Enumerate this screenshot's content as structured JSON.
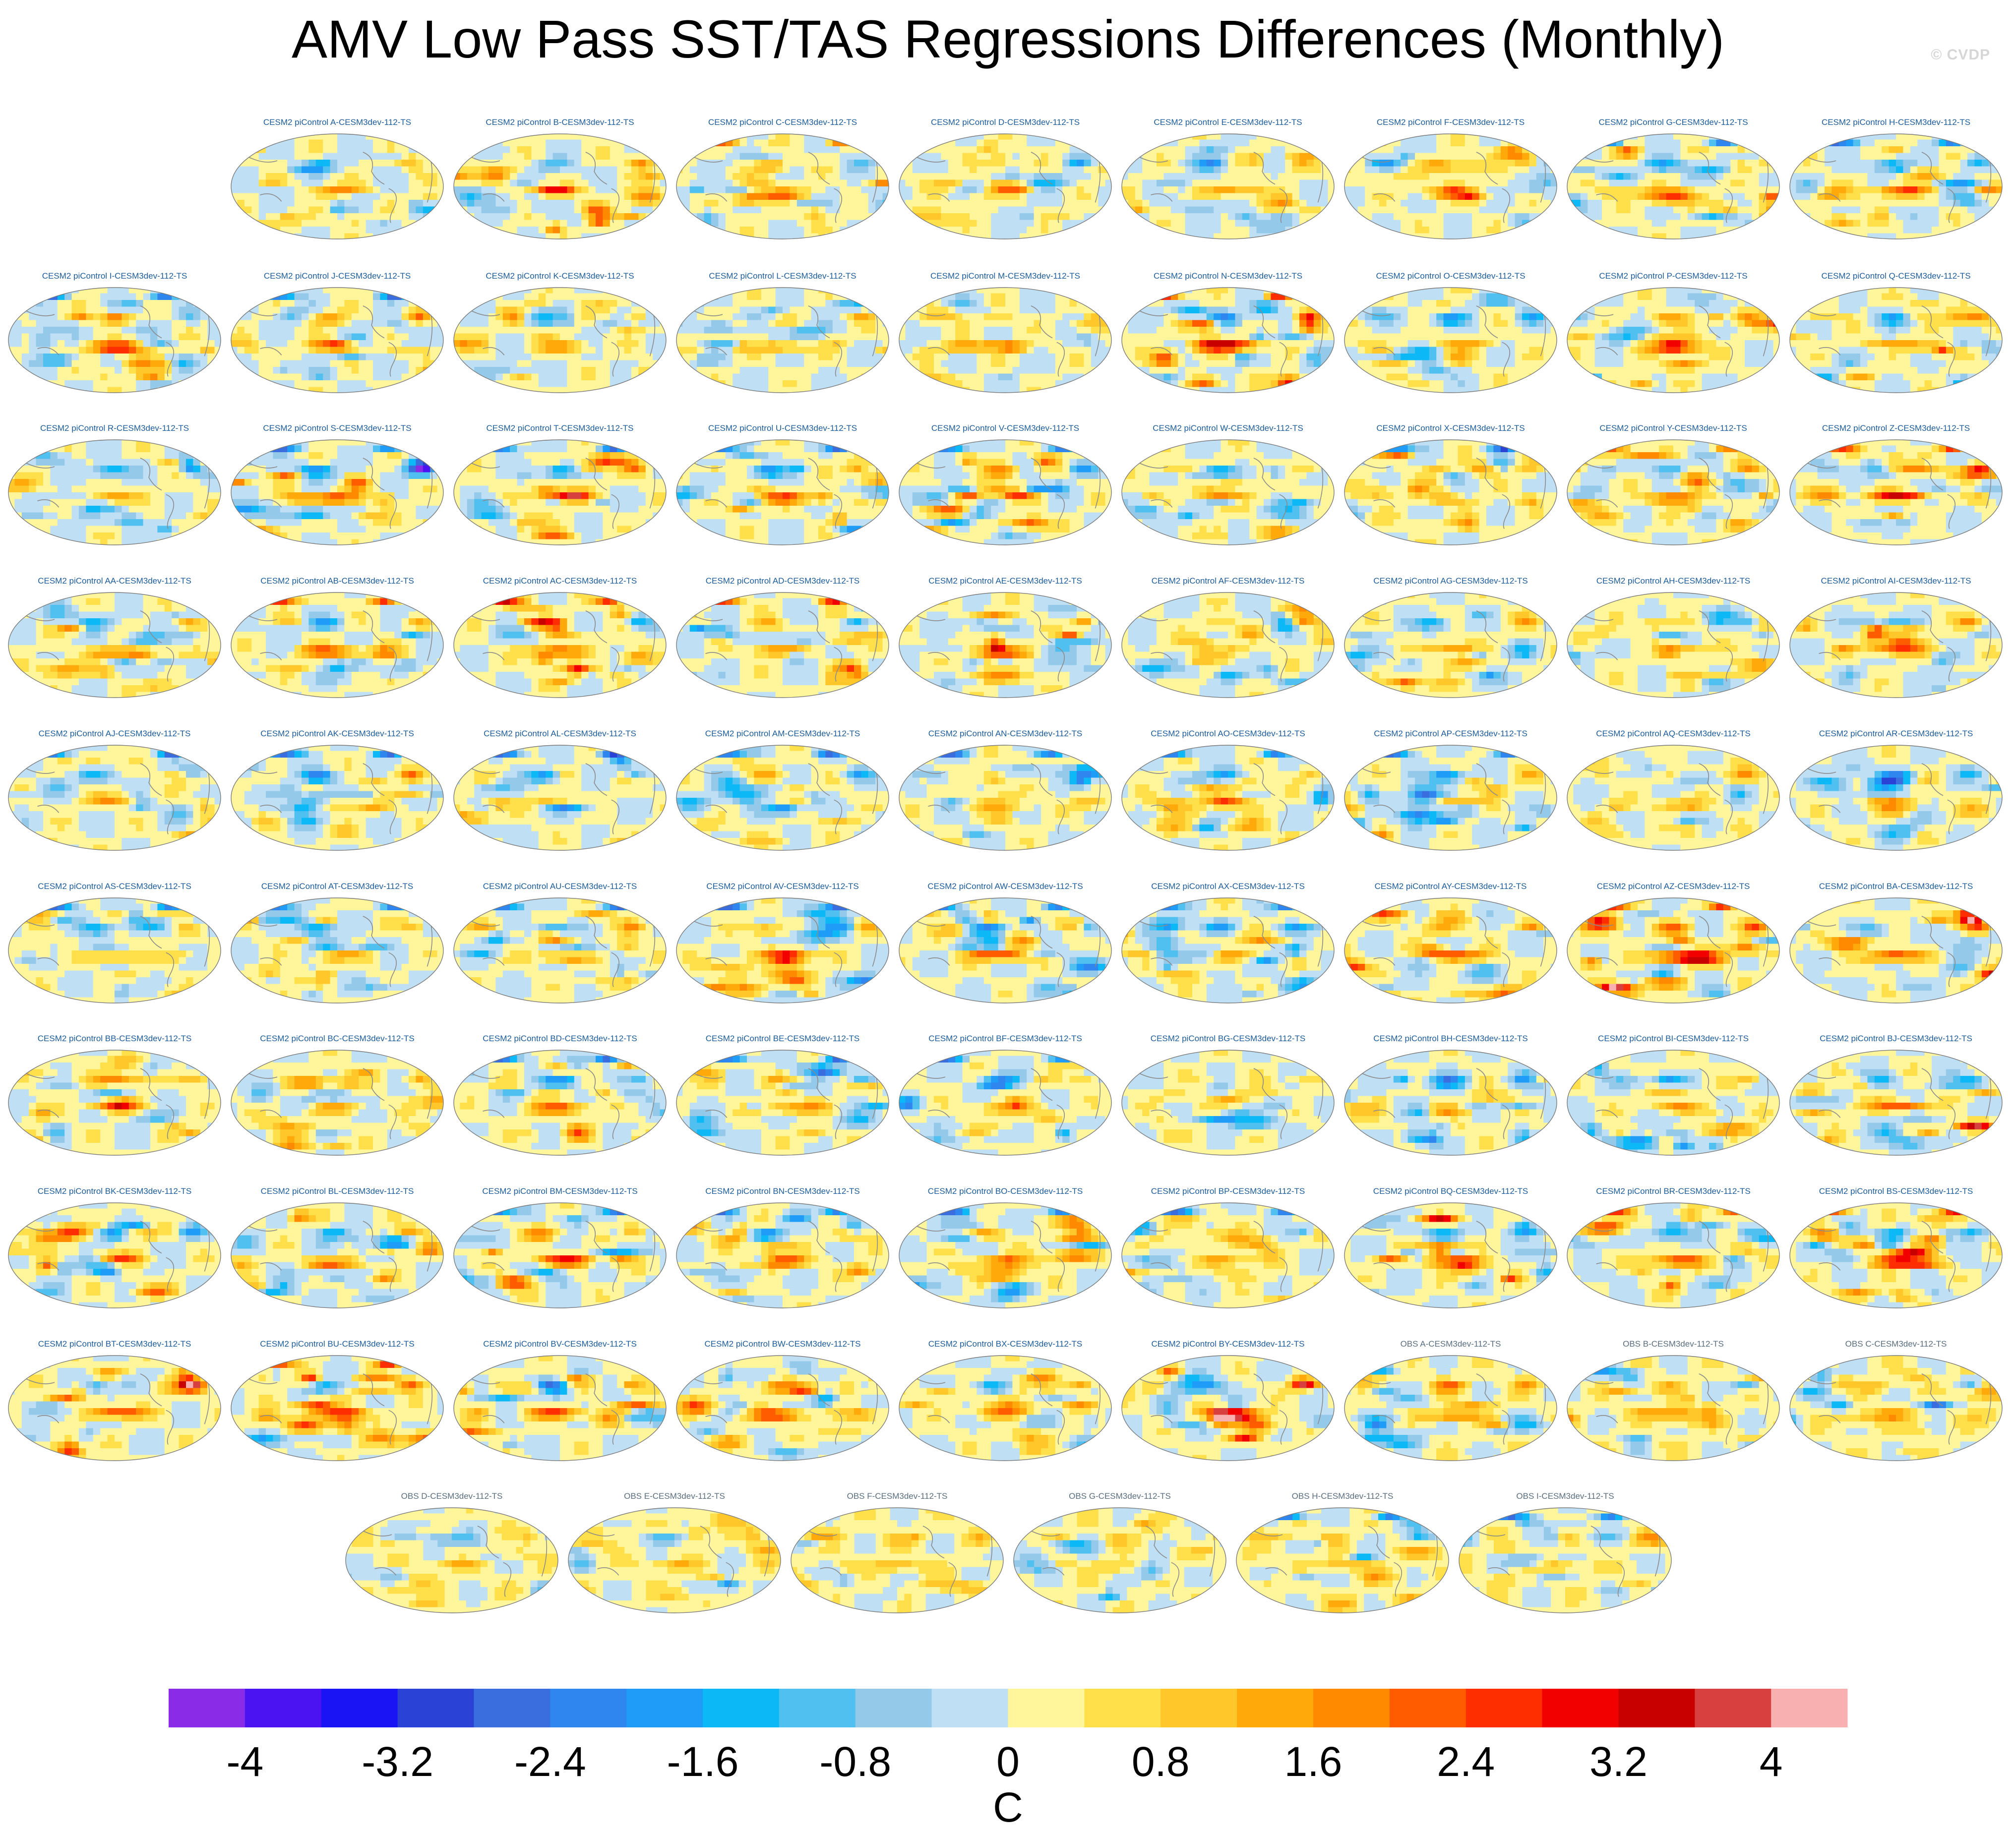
{
  "figure": {
    "title": "AMV Low Pass SST/TAS Regressions Differences (Monthly)",
    "watermark": "© CVDP"
  },
  "chart_data": {
    "type": "heatmap",
    "title": "AMV Low Pass SST/TAS Regressions Differences (Monthly)",
    "projection": "Robinson global map",
    "colorbar": {
      "unit": "C",
      "levels": [
        -4,
        -3.6,
        -3.2,
        -2.8,
        -2.4,
        -2.0,
        -1.6,
        -1.2,
        -0.8,
        -0.4,
        0,
        0.4,
        0.8,
        1.2,
        1.6,
        2.0,
        2.4,
        2.8,
        3.2,
        3.6,
        4
      ],
      "tick_labels": [
        "-4",
        "-3.2",
        "-2.4",
        "-1.6",
        "-0.8",
        "0",
        "0.8",
        "1.6",
        "2.4",
        "3.2",
        "4"
      ],
      "tick_values": [
        -4,
        -3.2,
        -2.4,
        -1.6,
        -0.8,
        0,
        0.8,
        1.6,
        2.4,
        3.2,
        4
      ],
      "colors": [
        "#8a2be8",
        "#4b12f2",
        "#1a14f5",
        "#2a42d6",
        "#3a6ede",
        "#2f86ee",
        "#1e9cf7",
        "#0cb8f5",
        "#50c0f0",
        "#95c9ea",
        "#bfdff4",
        "#fff59a",
        "#ffe04a",
        "#ffc72a",
        "#ffaa0a",
        "#ff8a00",
        "#ff5c00",
        "#ff2e00",
        "#f20000",
        "#c80000",
        "#d84040",
        "#f8b0b0"
      ]
    },
    "panels": [
      {
        "title": "CESM2 piControl A-CESM3dev-112-TS",
        "kind": "model",
        "warm": 1.6,
        "cold": -1.6,
        "arctic": 0
      },
      {
        "title": "CESM2 piControl B-CESM3dev-112-TS",
        "kind": "model",
        "warm": 2.8,
        "cold": -1.2,
        "arctic": 0
      },
      {
        "title": "CESM2 piControl C-CESM3dev-112-TS",
        "kind": "model",
        "warm": 2.0,
        "cold": -1.2,
        "arctic": 2.8
      },
      {
        "title": "CESM2 piControl D-CESM3dev-112-TS",
        "kind": "model",
        "warm": 1.2,
        "cold": -1.6,
        "arctic": 0
      },
      {
        "title": "CESM2 piControl E-CESM3dev-112-TS",
        "kind": "model",
        "warm": 1.6,
        "cold": -1.2,
        "arctic": 0
      },
      {
        "title": "CESM2 piControl F-CESM3dev-112-TS",
        "kind": "model",
        "warm": 2.0,
        "cold": -1.6,
        "arctic": 0
      },
      {
        "title": "CESM2 piControl G-CESM3dev-112-TS",
        "kind": "model",
        "warm": 2.4,
        "cold": -2.0,
        "arctic": -3.6
      },
      {
        "title": "CESM2 piControl H-CESM3dev-112-TS",
        "kind": "model",
        "warm": 2.8,
        "cold": -1.6,
        "arctic": -3.6
      },
      {
        "title": "CESM2 piControl I-CESM3dev-112-TS",
        "kind": "model",
        "warm": 3.2,
        "cold": -1.2,
        "arctic": -3.6
      },
      {
        "title": "CESM2 piControl J-CESM3dev-112-TS",
        "kind": "model",
        "warm": 2.8,
        "cold": -1.2,
        "arctic": -3.6
      },
      {
        "title": "CESM2 piControl K-CESM3dev-112-TS",
        "kind": "model",
        "warm": 1.6,
        "cold": -1.2,
        "arctic": 0
      },
      {
        "title": "CESM2 piControl L-CESM3dev-112-TS",
        "kind": "model",
        "warm": 1.6,
        "cold": -1.6,
        "arctic": 0
      },
      {
        "title": "CESM2 piControl M-CESM3dev-112-TS",
        "kind": "model",
        "warm": 1.6,
        "cold": -0.8,
        "arctic": 0
      },
      {
        "title": "CESM2 piControl N-CESM3dev-112-TS",
        "kind": "model",
        "warm": 3.6,
        "cold": -2.4,
        "arctic": 4.0
      },
      {
        "title": "CESM2 piControl O-CESM3dev-112-TS",
        "kind": "model",
        "warm": 1.2,
        "cold": -2.0,
        "arctic": 0
      },
      {
        "title": "CESM2 piControl P-CESM3dev-112-TS",
        "kind": "model",
        "warm": 2.4,
        "cold": -2.4,
        "arctic": 0
      },
      {
        "title": "CESM2 piControl Q-CESM3dev-112-TS",
        "kind": "model",
        "warm": 2.0,
        "cold": -1.6,
        "arctic": 0
      },
      {
        "title": "CESM2 piControl R-CESM3dev-112-TS",
        "kind": "model",
        "warm": 1.6,
        "cold": -2.0,
        "arctic": 0
      },
      {
        "title": "CESM2 piControl S-CESM3dev-112-TS",
        "kind": "model",
        "warm": 2.4,
        "cold": -2.4,
        "arctic": -3.6
      },
      {
        "title": "CESM2 piControl T-CESM3dev-112-TS",
        "kind": "model",
        "warm": 2.4,
        "cold": -2.0,
        "arctic": -3.6
      },
      {
        "title": "CESM2 piControl U-CESM3dev-112-TS",
        "kind": "model",
        "warm": 2.4,
        "cold": -2.0,
        "arctic": -3.6
      },
      {
        "title": "CESM2 piControl V-CESM3dev-112-TS",
        "kind": "model",
        "warm": 2.8,
        "cold": -2.4,
        "arctic": -3.6
      },
      {
        "title": "CESM2 piControl W-CESM3dev-112-TS",
        "kind": "model",
        "warm": 1.2,
        "cold": -2.0,
        "arctic": 0
      },
      {
        "title": "CESM2 piControl X-CESM3dev-112-TS",
        "kind": "model",
        "warm": 1.6,
        "cold": -2.0,
        "arctic": -3.6
      },
      {
        "title": "CESM2 piControl Y-CESM3dev-112-TS",
        "kind": "model",
        "warm": 2.4,
        "cold": -1.2,
        "arctic": 2.8
      },
      {
        "title": "CESM2 piControl Z-CESM3dev-112-TS",
        "kind": "model",
        "warm": 2.8,
        "cold": -1.2,
        "arctic": 3.6
      },
      {
        "title": "CESM2 piControl AA-CESM3dev-112-TS",
        "kind": "model",
        "warm": 2.0,
        "cold": -1.6,
        "arctic": 0
      },
      {
        "title": "CESM2 piControl AB-CESM3dev-112-TS",
        "kind": "model",
        "warm": 2.0,
        "cold": -2.0,
        "arctic": 3.6
      },
      {
        "title": "CESM2 piControl AC-CESM3dev-112-TS",
        "kind": "model",
        "warm": 2.4,
        "cold": -2.0,
        "arctic": 4.0
      },
      {
        "title": "CESM2 piControl AD-CESM3dev-112-TS",
        "kind": "model",
        "warm": 2.0,
        "cold": -2.0,
        "arctic": 4.0
      },
      {
        "title": "CESM2 piControl AE-CESM3dev-112-TS",
        "kind": "model",
        "warm": 2.8,
        "cold": -1.6,
        "arctic": 0
      },
      {
        "title": "CESM2 piControl AF-CESM3dev-112-TS",
        "kind": "model",
        "warm": 1.2,
        "cold": -2.0,
        "arctic": 0
      },
      {
        "title": "CESM2 piControl AG-CESM3dev-112-TS",
        "kind": "model",
        "warm": 2.0,
        "cold": -1.6,
        "arctic": 0
      },
      {
        "title": "CESM2 piControl AH-CESM3dev-112-TS",
        "kind": "model",
        "warm": 1.6,
        "cold": -1.6,
        "arctic": 0
      },
      {
        "title": "CESM2 piControl AI-CESM3dev-112-TS",
        "kind": "model",
        "warm": 2.4,
        "cold": -1.6,
        "arctic": 0
      },
      {
        "title": "CESM2 piControl AJ-CESM3dev-112-TS",
        "kind": "model",
        "warm": 1.6,
        "cold": -1.6,
        "arctic": -3.6
      },
      {
        "title": "CESM2 piControl AK-CESM3dev-112-TS",
        "kind": "model",
        "warm": 1.2,
        "cold": -2.4,
        "arctic": -3.6
      },
      {
        "title": "CESM2 piControl AL-CESM3dev-112-TS",
        "kind": "model",
        "warm": 1.2,
        "cold": -2.0,
        "arctic": -3.6
      },
      {
        "title": "CESM2 piControl AM-CESM3dev-112-TS",
        "kind": "model",
        "warm": 1.2,
        "cold": -2.0,
        "arctic": -3.6
      },
      {
        "title": "CESM2 piControl AN-CESM3dev-112-TS",
        "kind": "model",
        "warm": 1.2,
        "cold": -2.0,
        "arctic": -3.6
      },
      {
        "title": "CESM2 piControl AO-CESM3dev-112-TS",
        "kind": "model",
        "warm": 1.2,
        "cold": -2.4,
        "arctic": -3.6
      },
      {
        "title": "CESM2 piControl AP-CESM3dev-112-TS",
        "kind": "model",
        "warm": 1.6,
        "cold": -2.4,
        "arctic": -3.6
      },
      {
        "title": "CESM2 piControl AQ-CESM3dev-112-TS",
        "kind": "model",
        "warm": 1.2,
        "cold": -1.6,
        "arctic": 0
      },
      {
        "title": "CESM2 piControl AR-CESM3dev-112-TS",
        "kind": "model",
        "warm": 1.2,
        "cold": -1.6,
        "arctic": 0
      },
      {
        "title": "CESM2 piControl AS-CESM3dev-112-TS",
        "kind": "model",
        "warm": 1.2,
        "cold": -1.6,
        "arctic": -3.6
      },
      {
        "title": "CESM2 piControl AT-CESM3dev-112-TS",
        "kind": "model",
        "warm": 1.6,
        "cold": -2.0,
        "arctic": -3.6
      },
      {
        "title": "CESM2 piControl AU-CESM3dev-112-TS",
        "kind": "model",
        "warm": 2.0,
        "cold": -2.0,
        "arctic": -3.6
      },
      {
        "title": "CESM2 piControl AV-CESM3dev-112-TS",
        "kind": "model",
        "warm": 2.4,
        "cold": -2.0,
        "arctic": -3.6
      },
      {
        "title": "CESM2 piControl AW-CESM3dev-112-TS",
        "kind": "model",
        "warm": 2.4,
        "cold": -2.4,
        "arctic": -3.6
      },
      {
        "title": "CESM2 piControl AX-CESM3dev-112-TS",
        "kind": "model",
        "warm": 1.6,
        "cold": -2.4,
        "arctic": -3.6
      },
      {
        "title": "CESM2 piControl AY-CESM3dev-112-TS",
        "kind": "model",
        "warm": 2.4,
        "cold": -1.6,
        "arctic": 0
      },
      {
        "title": "CESM2 piControl AZ-CESM3dev-112-TS",
        "kind": "model",
        "warm": 3.2,
        "cold": -1.6,
        "arctic": 3.6
      },
      {
        "title": "CESM2 piControl BA-CESM3dev-112-TS",
        "kind": "model",
        "warm": 3.2,
        "cold": -1.2,
        "arctic": 0
      },
      {
        "title": "CESM2 piControl BB-CESM3dev-112-TS",
        "kind": "model",
        "warm": 2.0,
        "cold": -1.6,
        "arctic": 0
      },
      {
        "title": "CESM2 piControl BC-CESM3dev-112-TS",
        "kind": "model",
        "warm": 2.0,
        "cold": -1.2,
        "arctic": 0
      },
      {
        "title": "CESM2 piControl BD-CESM3dev-112-TS",
        "kind": "model",
        "warm": 2.4,
        "cold": -1.6,
        "arctic": -3.6
      },
      {
        "title": "CESM2 piControl BE-CESM3dev-112-TS",
        "kind": "model",
        "warm": 1.6,
        "cold": -2.0,
        "arctic": -3.6
      },
      {
        "title": "CESM2 piControl BF-CESM3dev-112-TS",
        "kind": "model",
        "warm": 1.2,
        "cold": -2.4,
        "arctic": -3.6
      },
      {
        "title": "CESM2 piControl BG-CESM3dev-112-TS",
        "kind": "model",
        "warm": 0.8,
        "cold": -2.0,
        "arctic": 0
      },
      {
        "title": "CESM2 piControl BH-CESM3dev-112-TS",
        "kind": "model",
        "warm": 1.6,
        "cold": -2.4,
        "arctic": 0
      },
      {
        "title": "CESM2 piControl BI-CESM3dev-112-TS",
        "kind": "model",
        "warm": 1.6,
        "cold": -2.0,
        "arctic": 0
      },
      {
        "title": "CESM2 piControl BJ-CESM3dev-112-TS",
        "kind": "model",
        "warm": 2.0,
        "cold": -1.6,
        "arctic": 0
      },
      {
        "title": "CESM2 piControl BK-CESM3dev-112-TS",
        "kind": "model",
        "warm": 2.8,
        "cold": -2.0,
        "arctic": 0
      },
      {
        "title": "CESM2 piControl BL-CESM3dev-112-TS",
        "kind": "model",
        "warm": 2.4,
        "cold": -1.6,
        "arctic": 0
      },
      {
        "title": "CESM2 piControl BM-CESM3dev-112-TS",
        "kind": "model",
        "warm": 3.2,
        "cold": -1.6,
        "arctic": -3.6
      },
      {
        "title": "CESM2 piControl BN-CESM3dev-112-TS",
        "kind": "model",
        "warm": 2.4,
        "cold": -2.0,
        "arctic": -3.6
      },
      {
        "title": "CESM2 piControl BO-CESM3dev-112-TS",
        "kind": "model",
        "warm": 2.4,
        "cold": -2.0,
        "arctic": -3.6
      },
      {
        "title": "CESM2 piControl BP-CESM3dev-112-TS",
        "kind": "model",
        "warm": 1.6,
        "cold": -2.0,
        "arctic": -3.6
      },
      {
        "title": "CESM2 piControl BQ-CESM3dev-112-TS",
        "kind": "model",
        "warm": 3.2,
        "cold": -1.6,
        "arctic": 0
      },
      {
        "title": "CESM2 piControl BR-CESM3dev-112-TS",
        "kind": "model",
        "warm": 2.8,
        "cold": -1.6,
        "arctic": 3.6
      },
      {
        "title": "CESM2 piControl BS-CESM3dev-112-TS",
        "kind": "model",
        "warm": 4.0,
        "cold": -1.6,
        "arctic": 3.6
      },
      {
        "title": "CESM2 piControl BT-CESM3dev-112-TS",
        "kind": "model",
        "warm": 2.8,
        "cold": -1.2,
        "arctic": 0
      },
      {
        "title": "CESM2 piControl BU-CESM3dev-112-TS",
        "kind": "model",
        "warm": 3.2,
        "cold": -1.6,
        "arctic": 3.6
      },
      {
        "title": "CESM2 piControl BV-CESM3dev-112-TS",
        "kind": "model",
        "warm": 2.4,
        "cold": -2.0,
        "arctic": 0
      },
      {
        "title": "CESM2 piControl BW-CESM3dev-112-TS",
        "kind": "model",
        "warm": 2.8,
        "cold": -2.0,
        "arctic": 0
      },
      {
        "title": "CESM2 piControl BX-CESM3dev-112-TS",
        "kind": "model",
        "warm": 2.4,
        "cold": -1.6,
        "arctic": 0
      },
      {
        "title": "CESM2 piControl BY-CESM3dev-112-TS",
        "kind": "model",
        "warm": 3.2,
        "cold": -1.6,
        "arctic": 0
      },
      {
        "title": "OBS A-CESM3dev-112-TS",
        "kind": "obs",
        "warm": 2.0,
        "cold": -2.0,
        "arctic": 0
      },
      {
        "title": "OBS B-CESM3dev-112-TS",
        "kind": "obs",
        "warm": 1.6,
        "cold": -2.0,
        "arctic": 0
      },
      {
        "title": "OBS C-CESM3dev-112-TS",
        "kind": "obs",
        "warm": 1.6,
        "cold": -2.0,
        "arctic": 0
      },
      {
        "title": "OBS D-CESM3dev-112-TS",
        "kind": "obs",
        "warm": 1.2,
        "cold": -1.2,
        "arctic": 0
      },
      {
        "title": "OBS E-CESM3dev-112-TS",
        "kind": "obs",
        "warm": 1.2,
        "cold": -1.6,
        "arctic": 0
      },
      {
        "title": "OBS F-CESM3dev-112-TS",
        "kind": "obs",
        "warm": 1.2,
        "cold": -1.2,
        "arctic": 0
      },
      {
        "title": "OBS G-CESM3dev-112-TS",
        "kind": "obs",
        "warm": 1.2,
        "cold": -1.6,
        "arctic": 0
      },
      {
        "title": "OBS H-CESM3dev-112-TS",
        "kind": "obs",
        "warm": 1.2,
        "cold": -2.0,
        "arctic": -3.6
      },
      {
        "title": "OBS I-CESM3dev-112-TS",
        "kind": "obs",
        "warm": 1.2,
        "cold": -1.6,
        "arctic": -3.6
      }
    ],
    "grid_rows": [
      8,
      9,
      9,
      9,
      9,
      9,
      9,
      9,
      9,
      6
    ]
  }
}
